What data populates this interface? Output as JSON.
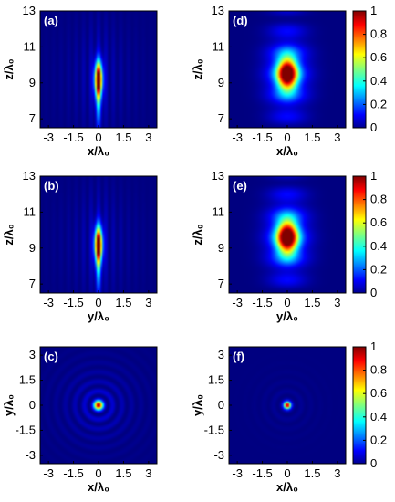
{
  "colors": {
    "low": "#00008f",
    "high": "#8b0000",
    "panel_label": "#ffffff",
    "frame": "#000000"
  },
  "colorbar": {
    "min": 0,
    "max": 1,
    "ticks": [
      "1",
      "0.8",
      "0.6",
      "0.4",
      "0.2",
      "0"
    ],
    "colormap": "jet"
  },
  "chart_data": [
    {
      "type": "heatmap",
      "panel_label": "(a)",
      "xlabel": "x/λ₀",
      "ylabel": "z/λ₀",
      "x_ticks": [
        "-3",
        "-1.5",
        "0",
        "1.5",
        "3"
      ],
      "y_ticks": [
        "13",
        "11",
        "9",
        "7"
      ],
      "xlim": [
        -3.5,
        3.5
      ],
      "ylim": [
        6.5,
        13
      ],
      "intensity": {
        "form": "elongated focal spot",
        "peak": 1,
        "x_center": 0,
        "z_center": 9.2,
        "x_width": 0.16,
        "z_width": 0.65
      }
    },
    {
      "type": "heatmap",
      "panel_label": "(b)",
      "xlabel": "y/λ₀",
      "ylabel": "z/λ₀",
      "x_ticks": [
        "-3",
        "-1.5",
        "0",
        "1.5",
        "3"
      ],
      "y_ticks": [
        "13",
        "11",
        "9",
        "7"
      ],
      "xlim": [
        -3.5,
        3.5
      ],
      "ylim": [
        6.5,
        13
      ],
      "intensity": {
        "form": "elongated focal spot",
        "peak": 1,
        "x_center": 0,
        "z_center": 9.2,
        "x_width": 0.16,
        "z_width": 0.65
      }
    },
    {
      "type": "heatmap",
      "panel_label": "(c)",
      "xlabel": "x/λ₀",
      "ylabel": "y/λ₀",
      "x_ticks": [
        "-3",
        "-1.5",
        "0",
        "1.5",
        "3"
      ],
      "y_ticks": [
        "3",
        "1.5",
        "0",
        "-1.5",
        "-3"
      ],
      "xlim": [
        -3.5,
        3.5
      ],
      "ylim": [
        -3.5,
        3.5
      ],
      "intensity": {
        "form": "focal spot with concentric rings",
        "peak": 1,
        "x_center": 0,
        "y_center": 0,
        "radius": 0.16
      }
    },
    {
      "type": "heatmap",
      "panel_label": "(d)",
      "xlabel": "x/λ₀",
      "ylabel": "z/λ₀",
      "x_ticks": [
        "-3",
        "-1.5",
        "0",
        "1.5",
        "3"
      ],
      "y_ticks": [
        "13",
        "11",
        "9",
        "7"
      ],
      "xlim": [
        -3.5,
        3.5
      ],
      "ylim": [
        6.5,
        13
      ],
      "intensity": {
        "form": "broad focal spot",
        "peak": 1,
        "x_center": 0,
        "z_center": 9.5,
        "x_width": 0.4,
        "z_width": 0.6
      }
    },
    {
      "type": "heatmap",
      "panel_label": "(e)",
      "xlabel": "y/λ₀",
      "ylabel": "z/λ₀",
      "x_ticks": [
        "-3",
        "-1.5",
        "0",
        "1.5",
        "3"
      ],
      "y_ticks": [
        "13",
        "11",
        "9",
        "7"
      ],
      "xlim": [
        -3.5,
        3.5
      ],
      "ylim": [
        6.5,
        13
      ],
      "intensity": {
        "form": "broad focal spot",
        "peak": 1,
        "x_center": 0,
        "z_center": 9.6,
        "x_width": 0.42,
        "z_width": 0.62
      }
    },
    {
      "type": "heatmap",
      "panel_label": "(f)",
      "xlabel": "x/λ₀",
      "ylabel": "y/λ₀",
      "x_ticks": [
        "-3",
        "-1.5",
        "0",
        "1.5",
        "3"
      ],
      "y_ticks": [
        "3",
        "1.5",
        "0",
        "-1.5",
        "-3"
      ],
      "xlim": [
        -3.5,
        3.5
      ],
      "ylim": [
        -3.5,
        3.5
      ],
      "intensity": {
        "form": "focal spot",
        "peak": 1,
        "x_center": 0,
        "y_center": 0,
        "radius": 0.14
      }
    }
  ]
}
